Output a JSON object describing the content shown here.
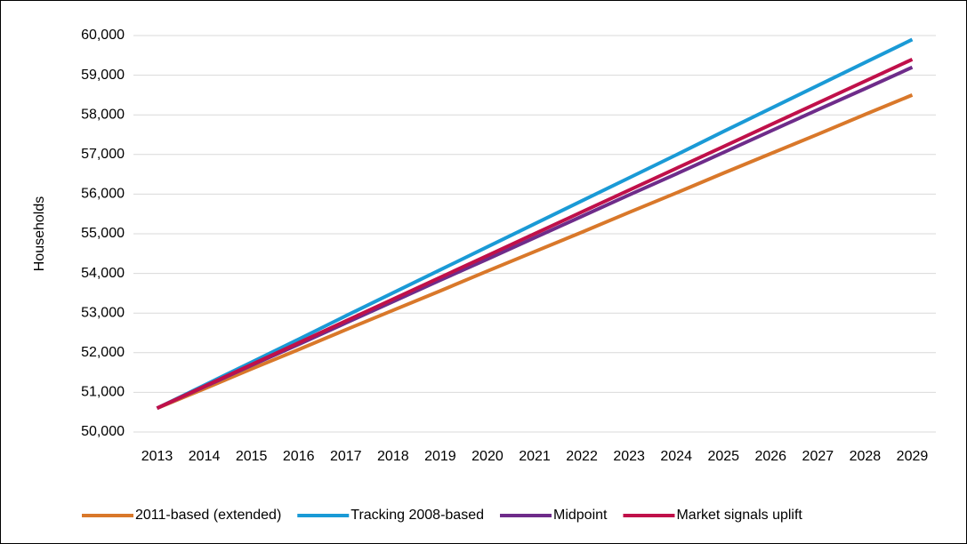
{
  "chart_data": {
    "type": "line",
    "y_label": "Households",
    "categories": [
      "2013",
      "2014",
      "2015",
      "2016",
      "2017",
      "2018",
      "2019",
      "2020",
      "2021",
      "2022",
      "2023",
      "2024",
      "2025",
      "2026",
      "2027",
      "2028",
      "2029"
    ],
    "series": [
      {
        "name": "2011-based (extended)",
        "color": "#d9782a",
        "values": [
          50600,
          51090,
          51590,
          52080,
          52580,
          53070,
          53560,
          54060,
          54550,
          55040,
          55540,
          56030,
          56530,
          57020,
          57510,
          58010,
          58500
        ]
      },
      {
        "name": "Tracking 2008-based",
        "color": "#1a9ad6",
        "values": [
          50600,
          51180,
          51760,
          52340,
          52930,
          53510,
          54090,
          54670,
          55250,
          55830,
          56410,
          56990,
          57580,
          58160,
          58740,
          59320,
          59900
        ]
      },
      {
        "name": "Midpoint",
        "color": "#6e2c8a",
        "values": [
          50600,
          51140,
          51680,
          52210,
          52750,
          53290,
          53830,
          54360,
          54900,
          55440,
          55980,
          56510,
          57050,
          57590,
          58130,
          58660,
          59200
        ]
      },
      {
        "name": "Market signals uplift",
        "color": "#c0104a",
        "values": [
          50600,
          51150,
          51700,
          52250,
          52800,
          53350,
          53900,
          54450,
          55000,
          55550,
          56100,
          56650,
          57200,
          57750,
          58300,
          58850,
          59400
        ]
      }
    ],
    "ylim": [
      50000,
      60000
    ],
    "yticks": [
      {
        "value": 50000,
        "label": "50,000"
      },
      {
        "value": 51000,
        "label": "51,000"
      },
      {
        "value": 52000,
        "label": "52,000"
      },
      {
        "value": 53000,
        "label": "53,000"
      },
      {
        "value": 54000,
        "label": "54,000"
      },
      {
        "value": 55000,
        "label": "55,000"
      },
      {
        "value": 56000,
        "label": "56,000"
      },
      {
        "value": 57000,
        "label": "57,000"
      },
      {
        "value": 58000,
        "label": "58,000"
      },
      {
        "value": 59000,
        "label": "59,000"
      },
      {
        "value": 60000,
        "label": "60,000"
      }
    ],
    "grid": true,
    "legend": "bottom"
  }
}
